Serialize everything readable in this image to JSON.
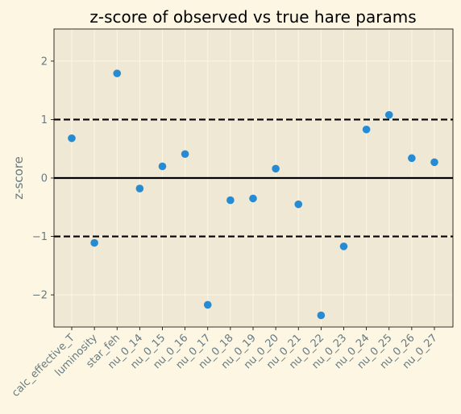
{
  "chart_data": {
    "type": "scatter",
    "title": "z-score of observed vs true hare params",
    "xlabel": "",
    "ylabel": "z-score",
    "ylim": [
      -2.55,
      2.55
    ],
    "yticks": [
      -2,
      -1,
      0,
      1,
      2
    ],
    "ytick_labels": [
      "−2",
      "−1",
      "0",
      "1",
      "2"
    ],
    "grid": true,
    "categories": [
      "calc_effective_T",
      "luminosity",
      "star_feh",
      "nu_0_14",
      "nu_0_15",
      "nu_0_16",
      "nu_0_17",
      "nu_0_18",
      "nu_0_19",
      "nu_0_20",
      "nu_0_21",
      "nu_0_22",
      "nu_0_23",
      "nu_0_24",
      "nu_0_25",
      "nu_0_26",
      "nu_0_27"
    ],
    "values": [
      0.68,
      -1.11,
      1.79,
      -0.18,
      0.2,
      0.41,
      -2.17,
      -0.38,
      -0.35,
      0.16,
      -0.45,
      -2.35,
      -1.17,
      0.83,
      1.08,
      0.34,
      0.27
    ],
    "reference_lines": [
      {
        "y": 1,
        "style": "dashed"
      },
      {
        "y": 0,
        "style": "solid"
      },
      {
        "y": -1,
        "style": "dashed"
      }
    ],
    "colors": {
      "point": "#268bd2",
      "plot_bg": "#eee8d5",
      "figure_bg": "#fdf6e3",
      "tick_text": "#657b83",
      "grid": "#fdf6e3",
      "ref_line": "#000000"
    }
  }
}
